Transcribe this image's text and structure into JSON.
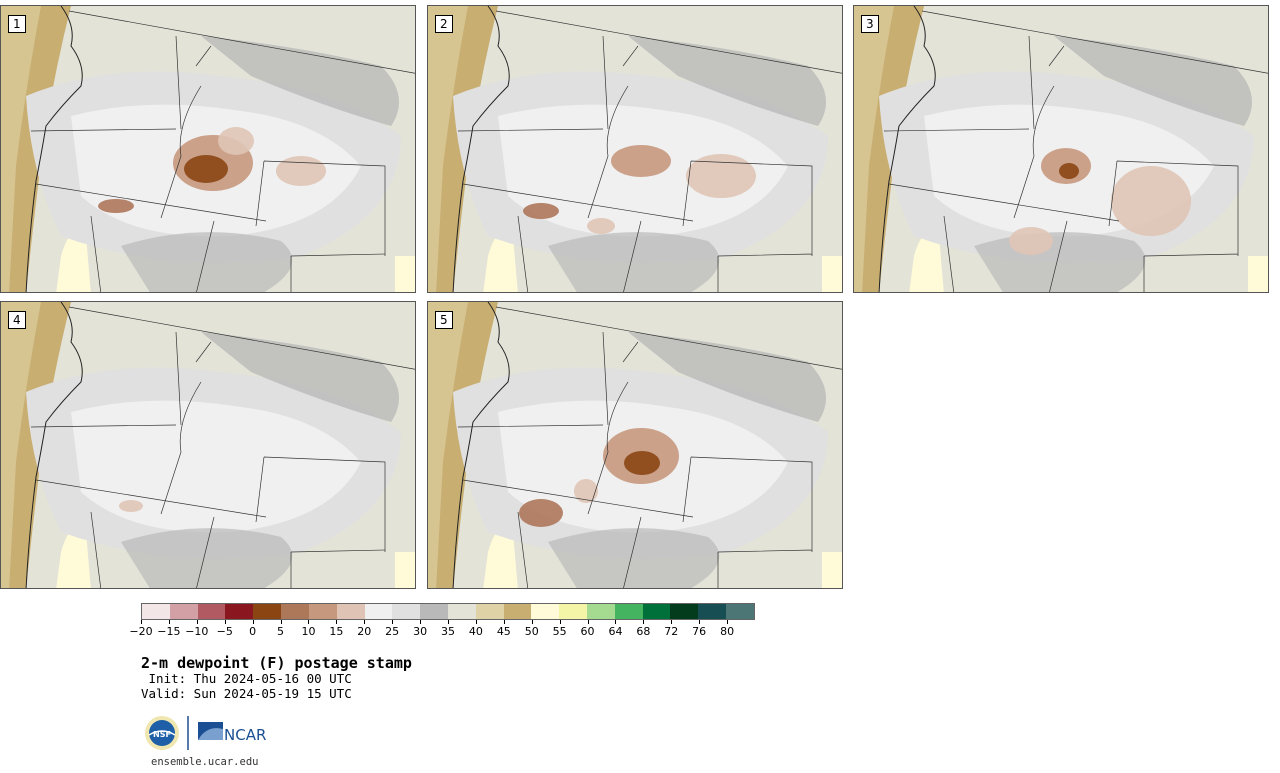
{
  "panels": [
    {
      "label": "1"
    },
    {
      "label": "2"
    },
    {
      "label": "3"
    },
    {
      "label": "4"
    },
    {
      "label": "5"
    }
  ],
  "colorbar": {
    "colors": [
      "#f3e6e6",
      "#d3a0a5",
      "#b25a61",
      "#8a1620",
      "#8b4512",
      "#ad775a",
      "#c6987e",
      "#dfc4b5",
      "#f0f0f0",
      "#e0e0e0",
      "#b9b9b9",
      "#e3e3d8",
      "#dfd2a7",
      "#c9ae72",
      "#fffbd8",
      "#f5f5a7",
      "#a5db90",
      "#45b460",
      "#00703a",
      "#033c1c",
      "#164e54",
      "#4c7675"
    ],
    "ticks": [
      "−20",
      "−15",
      "−10",
      "−5",
      "0",
      "5",
      "10",
      "15",
      "20",
      "25",
      "30",
      "35",
      "40",
      "45",
      "50",
      "55",
      "60",
      "64",
      "68",
      "72",
      "76",
      "80"
    ]
  },
  "title": "2-m dewpoint (F) postage stamp",
  "init": " Init: Thu 2024-05-16 00 UTC",
  "valid": "Valid: Sun 2024-05-19 15 UTC",
  "logo": {
    "nsf": "NSF",
    "ncar": "NCAR"
  },
  "url": "ensemble.ucar.edu"
}
